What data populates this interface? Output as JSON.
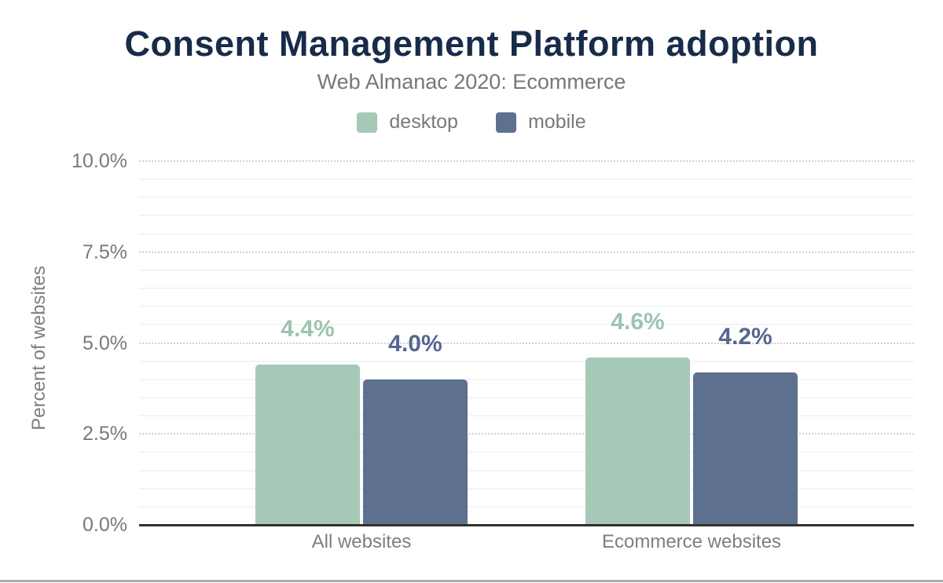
{
  "chart_data": {
    "type": "bar",
    "title": "Consent Management Platform adoption",
    "subtitle": "Web Almanac 2020: Ecommerce",
    "ylabel": "Percent of websites",
    "xlabel": "",
    "categories": [
      "All websites",
      "Ecommerce websites"
    ],
    "series": [
      {
        "name": "desktop",
        "values": [
          4.4,
          4.6
        ],
        "labels": [
          "4.4%",
          "4.6%"
        ],
        "bar_color": "#a6c9b7",
        "label_color": "#9cc4af"
      },
      {
        "name": "mobile",
        "values": [
          4.0,
          4.2
        ],
        "labels": [
          "4.0%",
          "4.2%"
        ],
        "bar_color": "#5e7090",
        "label_color": "#55678e"
      }
    ],
    "y_axis": {
      "min": 0,
      "max": 10,
      "major_step": 2.5,
      "minor_step": 0.5,
      "tick_labels": [
        "0.0%",
        "2.5%",
        "5.0%",
        "7.5%",
        "10.0%"
      ]
    },
    "legend": {
      "position": "top",
      "entries": [
        "desktop",
        "mobile"
      ]
    },
    "grid": "on"
  },
  "colors": {
    "title": "#182b49",
    "muted_text": "#77797c",
    "axis_line": "#303030",
    "grid_minor": "#f4f4f4",
    "grid_major": "#d2d2d2",
    "bottom_bar": "#adadad",
    "background": "#ffffff"
  }
}
